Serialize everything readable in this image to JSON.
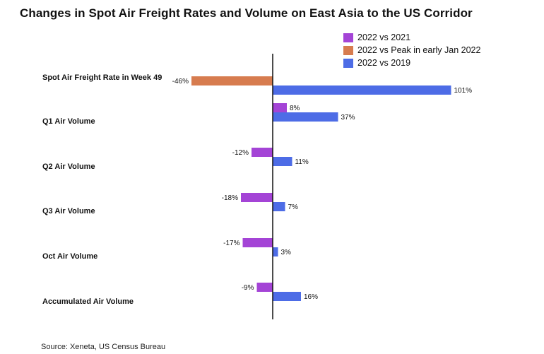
{
  "chart_data": {
    "type": "bar",
    "orientation": "horizontal",
    "title": "Changes in Spot Air Freight Rates and Volume on East Asia to the US Corridor",
    "categories": [
      "Spot Air Freight Rate in Week 49",
      "Q1 Air Volume",
      "Q2 Air Volume",
      "Q3 Air Volume",
      "Oct Air Volume",
      "Accumulated Air Volume"
    ],
    "series": [
      {
        "name": "2022 vs 2021",
        "color": "#a444d6",
        "values": [
          null,
          8,
          -12,
          -18,
          -17,
          -9
        ],
        "labels": [
          null,
          "8%",
          "-12%",
          "-18%",
          "-17%",
          "-9%"
        ]
      },
      {
        "name": "2022 vs Peak in early Jan 2022",
        "color": "#d77c4f",
        "values": [
          -46,
          null,
          null,
          null,
          null,
          null
        ],
        "labels": [
          "-46%",
          null,
          null,
          null,
          null,
          null
        ]
      },
      {
        "name": "2022 vs 2019",
        "color": "#4d6ce6",
        "values": [
          101,
          37,
          11,
          7,
          3,
          16
        ],
        "labels": [
          "101%",
          "37%",
          "11%",
          "7%",
          "3%",
          "16%"
        ]
      }
    ],
    "unit": "%",
    "legend_position": "top-right",
    "grid": false
  },
  "source": "Source: Xeneta, US Census Bureau"
}
